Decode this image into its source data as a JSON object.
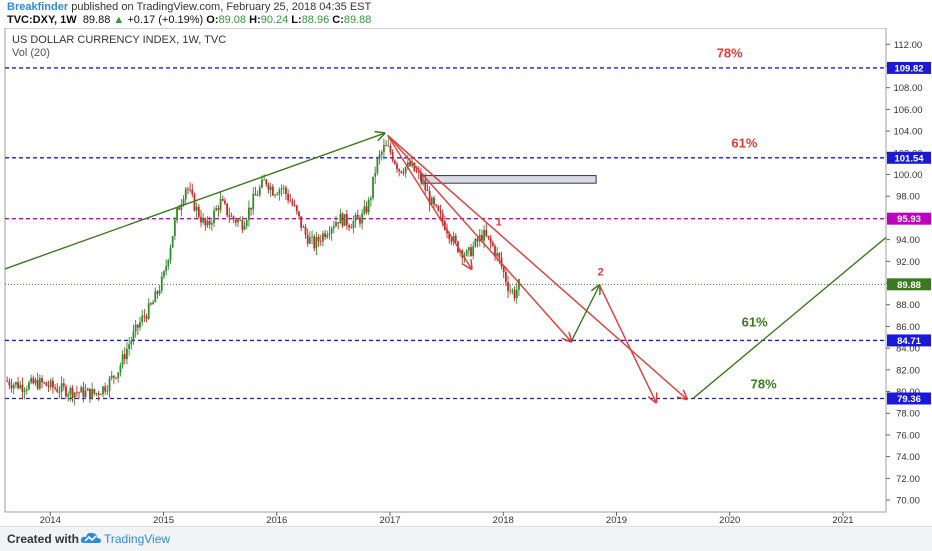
{
  "header": {
    "author": "Breakfinder",
    "published": "published on TradingView.com, February 25, 2018 04:35 EST",
    "symbol": "TVC:DXY, 1W",
    "last": "89.88",
    "change": "+0.17 (+0.19%)",
    "ohlc": {
      "o_label": "O:",
      "o": "89.08",
      "h_label": "H:",
      "h": "90.24",
      "l_label": "L:",
      "l": "88.96",
      "c_label": "C:",
      "c": "89.88"
    }
  },
  "chart_title": "US DOLLAR CURRENCY INDEX, 1W, TVC",
  "volume_label": "Vol (20)",
  "footer": {
    "created": "Created with",
    "brand": "TradingView"
  },
  "colors": {
    "up": "#2e8b2e",
    "down": "#c62828",
    "blue": "#1a1ad6",
    "magenta": "#c000c0",
    "red": "#e53935",
    "green": "#3a7a1f"
  },
  "chart_data": {
    "type": "candlestick",
    "title": "US DOLLAR CURRENCY INDEX, 1W, TVC",
    "x_ticks": [
      "2014",
      "2015",
      "2016",
      "2017",
      "2018",
      "2019",
      "2020",
      "2021"
    ],
    "y_ticks": [
      "70.00",
      "72.00",
      "74.00",
      "76.00",
      "78.00",
      "80.00",
      "82.00",
      "84.00",
      "86.00",
      "88.00",
      "90.00",
      "92.00",
      "94.00",
      "96.00",
      "98.00",
      "100.00",
      "102.00",
      "104.00",
      "106.00",
      "108.00",
      "110.00",
      "112.00"
    ],
    "ylim": [
      70,
      113
    ],
    "xlim": [
      2013.6,
      2021.38
    ],
    "price_path": [
      [
        2013.6,
        81.0
      ],
      [
        2013.75,
        80.5
      ],
      [
        2013.9,
        80.8
      ],
      [
        2014.05,
        80.3
      ],
      [
        2014.2,
        80.0
      ],
      [
        2014.3,
        79.9
      ],
      [
        2014.4,
        79.8
      ],
      [
        2014.5,
        80.6
      ],
      [
        2014.6,
        82.0
      ],
      [
        2014.7,
        84.5
      ],
      [
        2014.8,
        86.5
      ],
      [
        2014.9,
        88.0
      ],
      [
        2015.0,
        90.5
      ],
      [
        2015.05,
        93.0
      ],
      [
        2015.12,
        96.5
      ],
      [
        2015.2,
        99.0
      ],
      [
        2015.28,
        97.0
      ],
      [
        2015.38,
        95.0
      ],
      [
        2015.5,
        97.5
      ],
      [
        2015.6,
        96.0
      ],
      [
        2015.7,
        95.5
      ],
      [
        2015.8,
        97.8
      ],
      [
        2015.9,
        99.5
      ],
      [
        2015.97,
        98.5
      ],
      [
        2016.05,
        98.8
      ],
      [
        2016.15,
        97.0
      ],
      [
        2016.25,
        94.5
      ],
      [
        2016.33,
        93.5
      ],
      [
        2016.45,
        95.0
      ],
      [
        2016.55,
        96.0
      ],
      [
        2016.65,
        95.5
      ],
      [
        2016.75,
        96.0
      ],
      [
        2016.82,
        97.5
      ],
      [
        2016.88,
        101.0
      ],
      [
        2016.95,
        102.5
      ],
      [
        2017.0,
        102.2
      ],
      [
        2017.08,
        100.5
      ],
      [
        2017.18,
        100.8
      ],
      [
        2017.28,
        99.5
      ],
      [
        2017.38,
        97.0
      ],
      [
        2017.48,
        95.5
      ],
      [
        2017.58,
        93.5
      ],
      [
        2017.68,
        92.5
      ],
      [
        2017.75,
        93.5
      ],
      [
        2017.82,
        94.5
      ],
      [
        2017.9,
        93.5
      ],
      [
        2017.97,
        92.0
      ],
      [
        2018.05,
        89.5
      ],
      [
        2018.1,
        89.0
      ],
      [
        2018.14,
        89.88
      ]
    ],
    "horizontal_levels": [
      {
        "value": 109.82,
        "label": "109.82",
        "color": "blue",
        "style": "dashed"
      },
      {
        "value": 101.54,
        "label": "101.54",
        "color": "blue",
        "style": "dashed"
      },
      {
        "value": 95.93,
        "label": "95.93",
        "color": "magenta",
        "style": "dashed"
      },
      {
        "value": 89.88,
        "label": "89.88",
        "color": "green",
        "style": "dotted"
      },
      {
        "value": 84.71,
        "label": "84.71",
        "color": "blue",
        "style": "dashed"
      },
      {
        "value": 79.36,
        "label": "79.36",
        "color": "blue",
        "style": "dashed"
      }
    ],
    "rectangle": {
      "x": [
        2017.28,
        2018.82
      ],
      "y": [
        99.2,
        99.9
      ]
    },
    "trendline": {
      "from": [
        2013.6,
        91.3
      ],
      "to": [
        2016.95,
        103.8
      ],
      "arrow": true,
      "color": "green"
    },
    "projection_lines": [
      {
        "from": [
          2016.98,
          103.6
        ],
        "to": [
          2017.72,
          91.3
        ],
        "color": "red",
        "arrow": true
      },
      {
        "from": [
          2016.98,
          103.6
        ],
        "to": [
          2018.6,
          84.6
        ],
        "color": "red",
        "arrow": true
      },
      {
        "from": [
          2016.98,
          103.6
        ],
        "to": [
          2019.62,
          79.3
        ],
        "color": "red",
        "arrow": true
      },
      {
        "from": [
          2018.6,
          84.6
        ],
        "to": [
          2018.85,
          89.8
        ],
        "color": "green",
        "arrow": true
      },
      {
        "from": [
          2018.85,
          89.8
        ],
        "to": [
          2019.35,
          79.0
        ],
        "color": "red",
        "arrow": true
      },
      {
        "from": [
          2019.68,
          79.4
        ],
        "to": [
          2021.38,
          94.2
        ],
        "color": "green",
        "arrow": false
      }
    ],
    "annotations": [
      {
        "text": "78%",
        "x": 2020.0,
        "y": 110.8,
        "color": "red"
      },
      {
        "text": "61%",
        "x": 2020.13,
        "y": 102.5,
        "color": "red"
      },
      {
        "text": "1",
        "x": 2017.96,
        "y": 95.3,
        "color": "red"
      },
      {
        "text": "2",
        "x": 2018.86,
        "y": 90.7,
        "color": "red"
      },
      {
        "text": "61%",
        "x": 2020.22,
        "y": 86.0,
        "color": "green"
      },
      {
        "text": "78%",
        "x": 2020.3,
        "y": 80.3,
        "color": "green"
      }
    ]
  }
}
